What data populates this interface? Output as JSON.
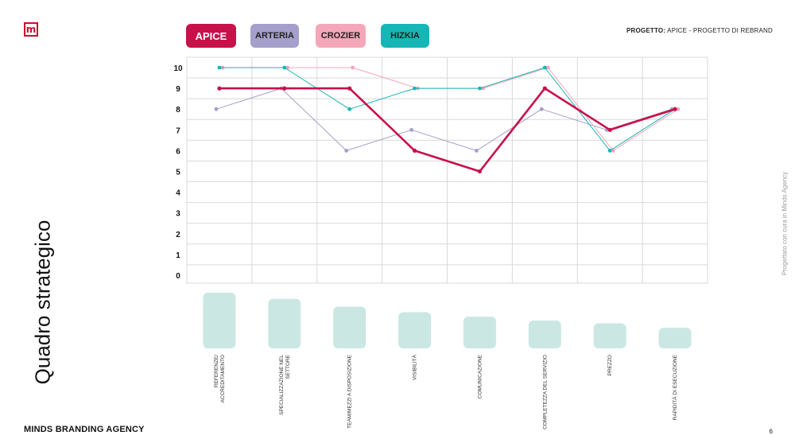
{
  "brand": {
    "logo_letter": "m",
    "agency": "MINDS BRANDING AGENCY",
    "side_note": "Progettato con cura in Minds Agency",
    "page_number": "6"
  },
  "header": {
    "project_label": "PROGETTO:",
    "project_value": "APICE - PROGETTO DI REBRAND"
  },
  "title": "Quadro strategico",
  "colors": {
    "apice": "#c8104a",
    "arteria": "#a59fcb",
    "crozier": "#f4a7b9",
    "hizkia": "#17b6b6",
    "bars": "#cbe7e4",
    "grid": "#d9d9d9"
  },
  "chart_data": {
    "type": "line",
    "categories": [
      "REFERENZE/ ACCREDITAMENTO",
      "SPECIALIZZAZIONE NEL SETTORE",
      "TEAM/MEZZI A DISPOSIZIONE",
      "VISIBILITÀ",
      "COMUNICAZIONE",
      "COMPLETEZZA DEL SERVIZIO",
      "PREZZO",
      "RAPIDITÀ DI ESECUZIONE"
    ],
    "category_lines": [
      [
        "REFERENZE/",
        "ACCREDITAMENTO"
      ],
      [
        "SPECIALIZZAZIONE NEL",
        "SETTORE"
      ],
      [
        "TEAM/MEZZI A DISPOSIZIONE"
      ],
      [
        "VISIBILITÀ"
      ],
      [
        "COMUNICAZIONE"
      ],
      [
        "COMPLETEZZA DEL SERVIZIO"
      ],
      [
        "PREZZO"
      ],
      [
        "RAPIDITÀ DI ESECUZIONE"
      ]
    ],
    "y_ticks": [
      0,
      1,
      2,
      3,
      4,
      5,
      6,
      7,
      8,
      9,
      10
    ],
    "ylim": [
      0,
      10
    ],
    "grid": true,
    "legend_position": "top",
    "series": [
      {
        "name": "APICE",
        "color": "#c8104a",
        "values": [
          9,
          9,
          9,
          6,
          5,
          9,
          7,
          8
        ],
        "emphasis": true
      },
      {
        "name": "ARTERIA",
        "color": "#a59fcb",
        "values": [
          8,
          9,
          6,
          7,
          6,
          8,
          7,
          8
        ]
      },
      {
        "name": "CROZIER",
        "color": "#f4a7b9",
        "values": [
          10,
          10,
          10,
          9,
          9,
          10,
          6,
          8
        ]
      },
      {
        "name": "HIZKIA",
        "color": "#17b6b6",
        "values": [
          10,
          10,
          8,
          9,
          9,
          10,
          6,
          8
        ]
      }
    ],
    "importance_bars": [
      1.0,
      0.89,
      0.75,
      0.65,
      0.57,
      0.5,
      0.45,
      0.37
    ]
  }
}
